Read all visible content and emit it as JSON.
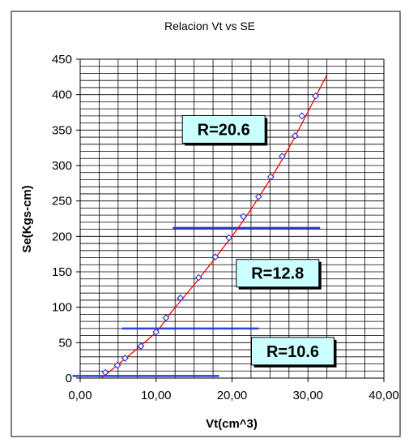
{
  "chart_data": {
    "type": "scatter",
    "title": "Relacion Vt vs SE",
    "xlabel": "Vt(cm^3)",
    "ylabel": "Se(Kgs-cm)",
    "xlim": [
      0,
      40
    ],
    "ylim": [
      0,
      450
    ],
    "x_ticks": [
      "0,00",
      "10,00",
      "20,00",
      "30,00",
      "40,00"
    ],
    "y_ticks": [
      "0",
      "50",
      "100",
      "150",
      "200",
      "250",
      "300",
      "350",
      "400",
      "450"
    ],
    "grid": true,
    "points": [
      {
        "x": 3.3,
        "y": 8
      },
      {
        "x": 4.9,
        "y": 18
      },
      {
        "x": 5.9,
        "y": 28
      },
      {
        "x": 8.0,
        "y": 45
      },
      {
        "x": 10.0,
        "y": 65
      },
      {
        "x": 11.3,
        "y": 85
      },
      {
        "x": 13.2,
        "y": 113
      },
      {
        "x": 15.6,
        "y": 142
      },
      {
        "x": 17.8,
        "y": 171
      },
      {
        "x": 19.6,
        "y": 198
      },
      {
        "x": 21.5,
        "y": 228
      },
      {
        "x": 23.5,
        "y": 256
      },
      {
        "x": 25.1,
        "y": 284
      },
      {
        "x": 26.6,
        "y": 313
      },
      {
        "x": 28.3,
        "y": 342
      },
      {
        "x": 29.2,
        "y": 370
      },
      {
        "x": 31.0,
        "y": 398
      }
    ],
    "fit_curve": [
      {
        "x": 2.8,
        "y": 0
      },
      {
        "x": 6.0,
        "y": 28
      },
      {
        "x": 10.0,
        "y": 65
      },
      {
        "x": 12.0,
        "y": 93
      },
      {
        "x": 16.0,
        "y": 145
      },
      {
        "x": 21.0,
        "y": 215
      },
      {
        "x": 25.0,
        "y": 280
      },
      {
        "x": 28.0,
        "y": 335
      },
      {
        "x": 32.5,
        "y": 428
      }
    ],
    "marker_color": "#1f2fd0",
    "curve_color": "#ff0000",
    "threshold_color": "#2a3fd6",
    "thresholds": [
      {
        "y": 3,
        "x_start": -1,
        "x_end": 18.3
      },
      {
        "y": 70,
        "x_start": 5.5,
        "x_end": 23.5
      },
      {
        "y": 212,
        "x_start": 12.2,
        "x_end": 31.6
      }
    ],
    "annotations": [
      {
        "text": "R=20.6",
        "x": 18.9,
        "y": 351
      },
      {
        "text": "R=12.8",
        "x": 26.0,
        "y": 148
      },
      {
        "text": "R=10.6",
        "x": 28.0,
        "y": 38
      }
    ],
    "annotation_box_color": "#ccffff"
  }
}
